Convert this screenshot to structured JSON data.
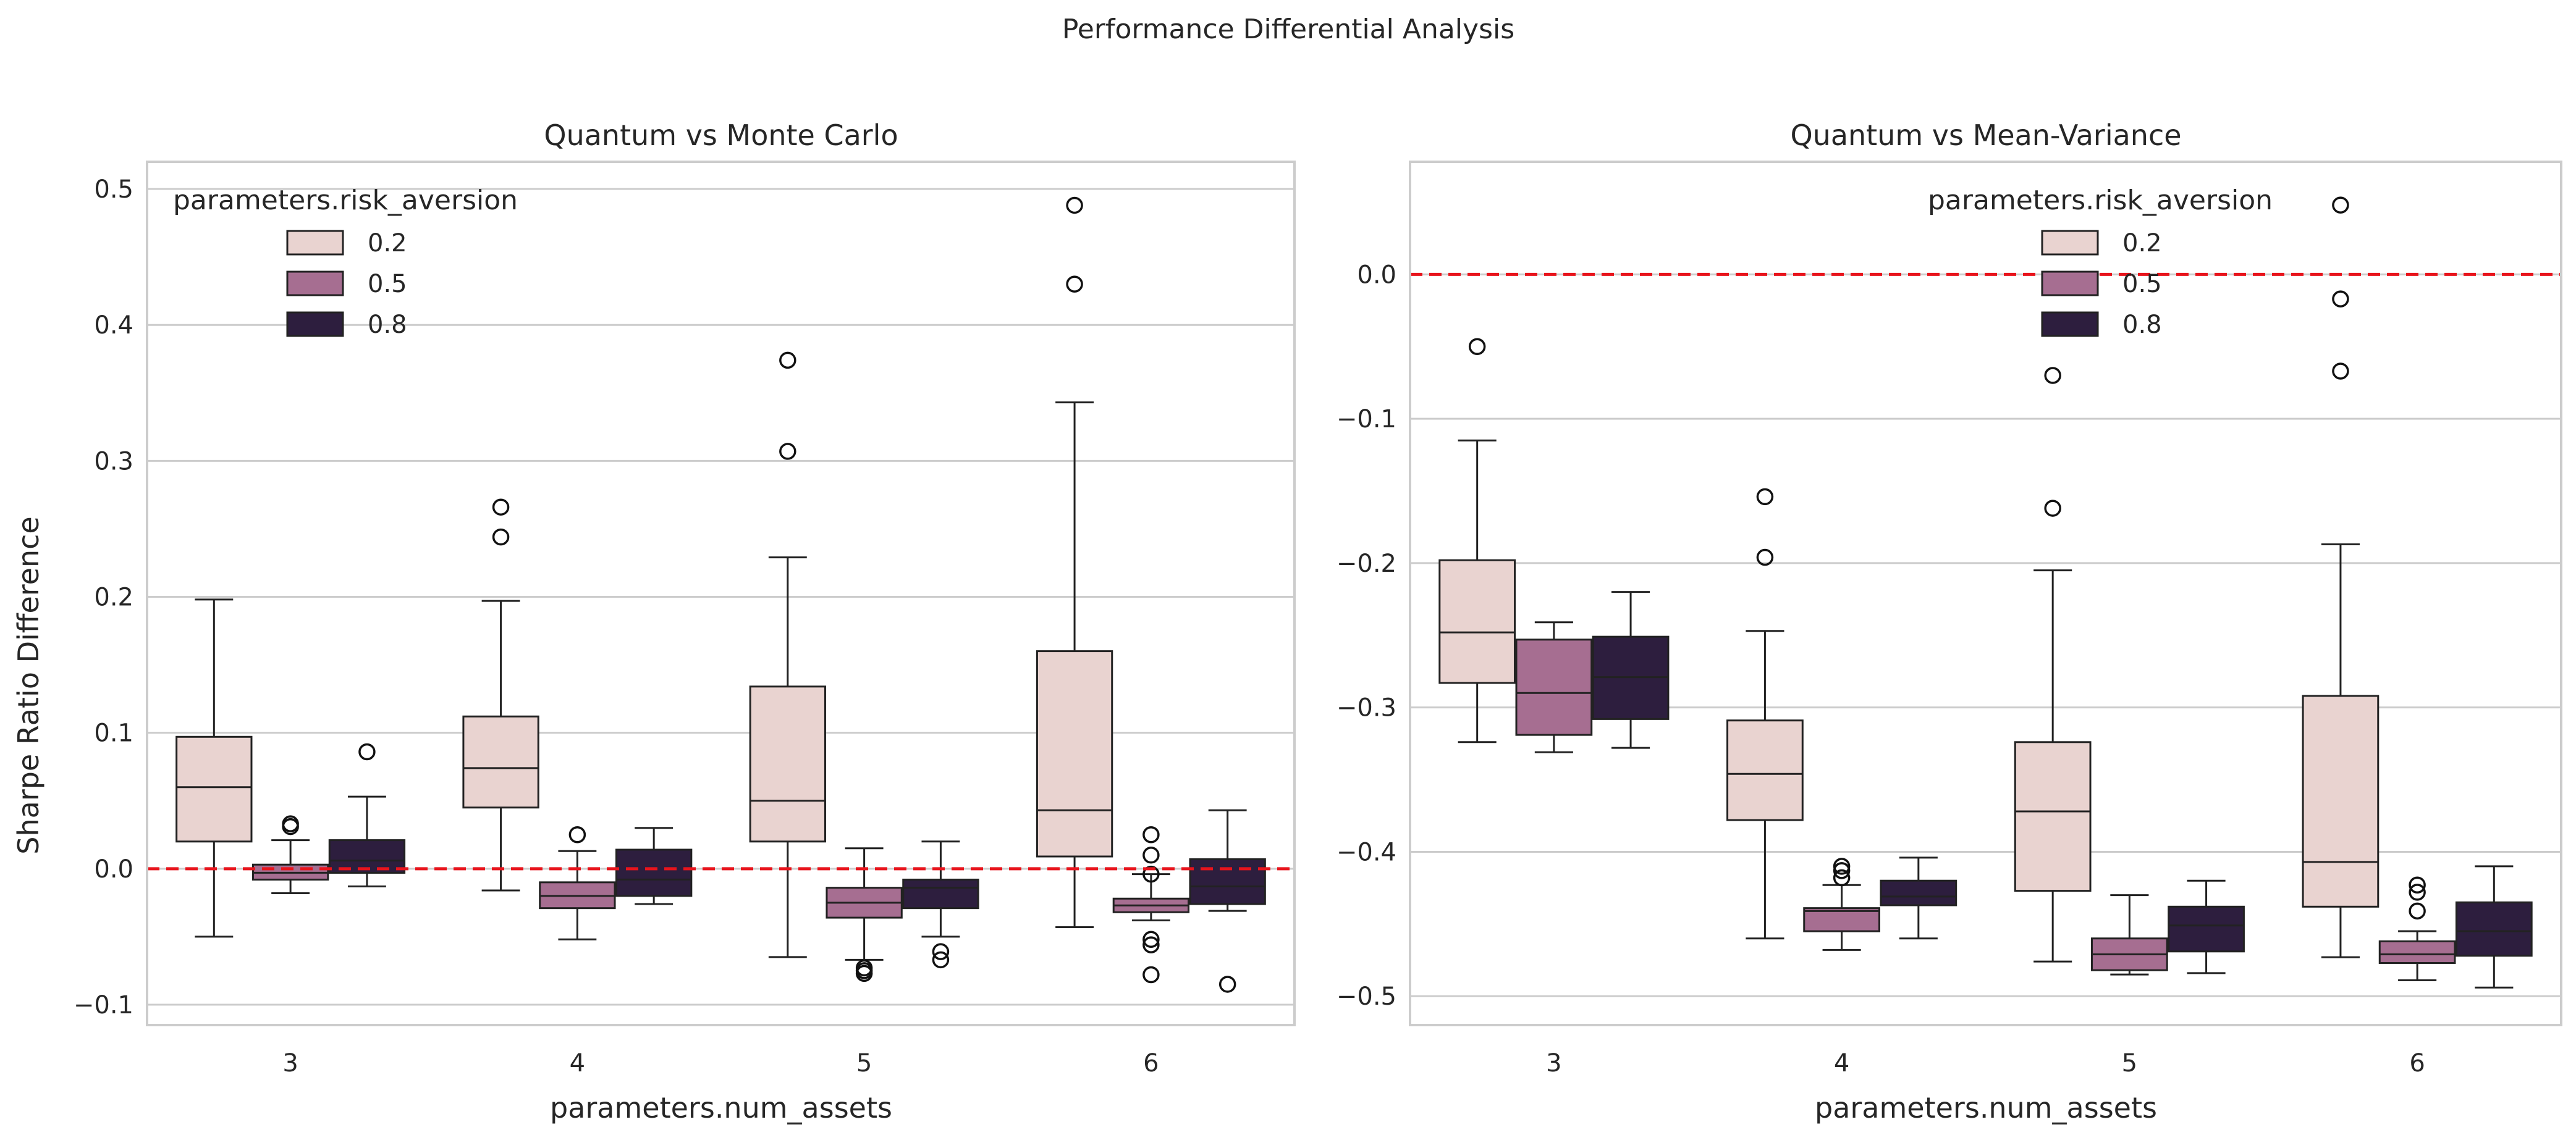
{
  "figure": {
    "suptitle": "Performance Differential Analysis",
    "hue_colors": {
      "0.2": "#e9d3d0",
      "0.5": "#a66e91",
      "0.8": "#2d1e3e"
    },
    "reference_line_color": "#e8141c"
  },
  "chart_data": [
    {
      "type": "box",
      "title": "Quantum vs Monte Carlo",
      "xlabel": "parameters.num_assets",
      "ylabel": "Sharpe Ratio Difference",
      "categories": [
        "3",
        "4",
        "5",
        "6"
      ],
      "ylim": [
        -0.115,
        0.52
      ],
      "yticks": [
        -0.1,
        0.0,
        0.1,
        0.2,
        0.3,
        0.4,
        0.5
      ],
      "ytick_labels": [
        "−0.1",
        "0.0",
        "0.1",
        "0.2",
        "0.3",
        "0.4",
        "0.5"
      ],
      "grid": true,
      "reference_line": 0.0,
      "legend": {
        "title": "parameters.risk_aversion",
        "entries": [
          "0.2",
          "0.5",
          "0.8"
        ],
        "placement": "upper-left"
      },
      "series": [
        {
          "name": "0.2",
          "boxes": [
            {
              "category": "3",
              "whislo": -0.05,
              "q1": 0.02,
              "med": 0.06,
              "q3": 0.097,
              "whishi": 0.198,
              "fliers": []
            },
            {
              "category": "4",
              "whislo": -0.016,
              "q1": 0.045,
              "med": 0.074,
              "q3": 0.112,
              "whishi": 0.197,
              "fliers": [
                0.244,
                0.266
              ]
            },
            {
              "category": "5",
              "whislo": -0.065,
              "q1": 0.02,
              "med": 0.05,
              "q3": 0.134,
              "whishi": 0.229,
              "fliers": [
                0.307,
                0.374
              ]
            },
            {
              "category": "6",
              "whislo": -0.043,
              "q1": 0.009,
              "med": 0.043,
              "q3": 0.16,
              "whishi": 0.343,
              "fliers": [
                0.43,
                0.488
              ]
            }
          ]
        },
        {
          "name": "0.5",
          "boxes": [
            {
              "category": "3",
              "whislo": -0.018,
              "q1": -0.008,
              "med": -0.003,
              "q3": 0.003,
              "whishi": 0.021,
              "fliers": [
                0.031,
                0.033
              ]
            },
            {
              "category": "4",
              "whislo": -0.052,
              "q1": -0.029,
              "med": -0.02,
              "q3": -0.01,
              "whishi": 0.013,
              "fliers": [
                0.025
              ]
            },
            {
              "category": "5",
              "whislo": -0.067,
              "q1": -0.036,
              "med": -0.025,
              "q3": -0.014,
              "whishi": 0.015,
              "fliers": [
                -0.073,
                -0.075,
                -0.077
              ]
            },
            {
              "category": "6",
              "whislo": -0.038,
              "q1": -0.032,
              "med": -0.027,
              "q3": -0.022,
              "whishi": -0.004,
              "fliers": [
                0.025,
                0.01,
                -0.004,
                -0.052,
                -0.056,
                -0.078
              ]
            }
          ]
        },
        {
          "name": "0.8",
          "boxes": [
            {
              "category": "3",
              "whislo": -0.013,
              "q1": -0.003,
              "med": 0.006,
              "q3": 0.021,
              "whishi": 0.053,
              "fliers": [
                0.086
              ]
            },
            {
              "category": "4",
              "whislo": -0.026,
              "q1": -0.02,
              "med": -0.008,
              "q3": 0.014,
              "whishi": 0.03,
              "fliers": []
            },
            {
              "category": "5",
              "whislo": -0.05,
              "q1": -0.029,
              "med": -0.014,
              "q3": -0.008,
              "whishi": 0.02,
              "fliers": [
                -0.061,
                -0.067
              ]
            },
            {
              "category": "6",
              "whislo": -0.031,
              "q1": -0.026,
              "med": -0.013,
              "q3": 0.007,
              "whishi": 0.043,
              "fliers": [
                -0.085
              ]
            }
          ]
        }
      ]
    },
    {
      "type": "box",
      "title": "Quantum vs Mean-Variance",
      "xlabel": "parameters.num_assets",
      "ylabel": "",
      "categories": [
        "3",
        "4",
        "5",
        "6"
      ],
      "ylim": [
        -0.52,
        0.078
      ],
      "yticks": [
        -0.5,
        -0.4,
        -0.3,
        -0.2,
        -0.1,
        0.0
      ],
      "ytick_labels": [
        "−0.5",
        "−0.4",
        "−0.3",
        "−0.2",
        "−0.1",
        "0.0"
      ],
      "grid": true,
      "reference_line": 0.0,
      "legend": {
        "title": "parameters.risk_aversion",
        "entries": [
          "0.2",
          "0.5",
          "0.8"
        ],
        "placement": "upper-center"
      },
      "series": [
        {
          "name": "0.2",
          "boxes": [
            {
              "category": "3",
              "whislo": -0.324,
              "q1": -0.283,
              "med": -0.248,
              "q3": -0.198,
              "whishi": -0.115,
              "fliers": [
                -0.05
              ]
            },
            {
              "category": "4",
              "whislo": -0.46,
              "q1": -0.378,
              "med": -0.346,
              "q3": -0.309,
              "whishi": -0.247,
              "fliers": [
                -0.196,
                -0.154
              ]
            },
            {
              "category": "5",
              "whislo": -0.476,
              "q1": -0.427,
              "med": -0.372,
              "q3": -0.324,
              "whishi": -0.205,
              "fliers": [
                -0.162,
                -0.07
              ]
            },
            {
              "category": "6",
              "whislo": -0.473,
              "q1": -0.438,
              "med": -0.407,
              "q3": -0.292,
              "whishi": -0.187,
              "fliers": [
                -0.067,
                -0.017,
                0.048
              ]
            }
          ]
        },
        {
          "name": "0.5",
          "boxes": [
            {
              "category": "3",
              "whislo": -0.331,
              "q1": -0.319,
              "med": -0.29,
              "q3": -0.253,
              "whishi": -0.241,
              "fliers": []
            },
            {
              "category": "4",
              "whislo": -0.468,
              "q1": -0.455,
              "med": -0.441,
              "q3": -0.439,
              "whishi": -0.423,
              "fliers": [
                -0.41,
                -0.413,
                -0.418
              ]
            },
            {
              "category": "5",
              "whislo": -0.485,
              "q1": -0.482,
              "med": -0.471,
              "q3": -0.46,
              "whishi": -0.43,
              "fliers": []
            },
            {
              "category": "6",
              "whislo": -0.489,
              "q1": -0.477,
              "med": -0.471,
              "q3": -0.462,
              "whishi": -0.455,
              "fliers": [
                -0.423,
                -0.428,
                -0.441
              ]
            }
          ]
        },
        {
          "name": "0.8",
          "boxes": [
            {
              "category": "3",
              "whislo": -0.328,
              "q1": -0.308,
              "med": -0.279,
              "q3": -0.251,
              "whishi": -0.22,
              "fliers": []
            },
            {
              "category": "4",
              "whislo": -0.46,
              "q1": -0.437,
              "med": -0.431,
              "q3": -0.42,
              "whishi": -0.404,
              "fliers": []
            },
            {
              "category": "5",
              "whislo": -0.484,
              "q1": -0.469,
              "med": -0.451,
              "q3": -0.438,
              "whishi": -0.42,
              "fliers": []
            },
            {
              "category": "6",
              "whislo": -0.494,
              "q1": -0.472,
              "med": -0.455,
              "q3": -0.435,
              "whishi": -0.41,
              "fliers": []
            }
          ]
        }
      ]
    }
  ]
}
